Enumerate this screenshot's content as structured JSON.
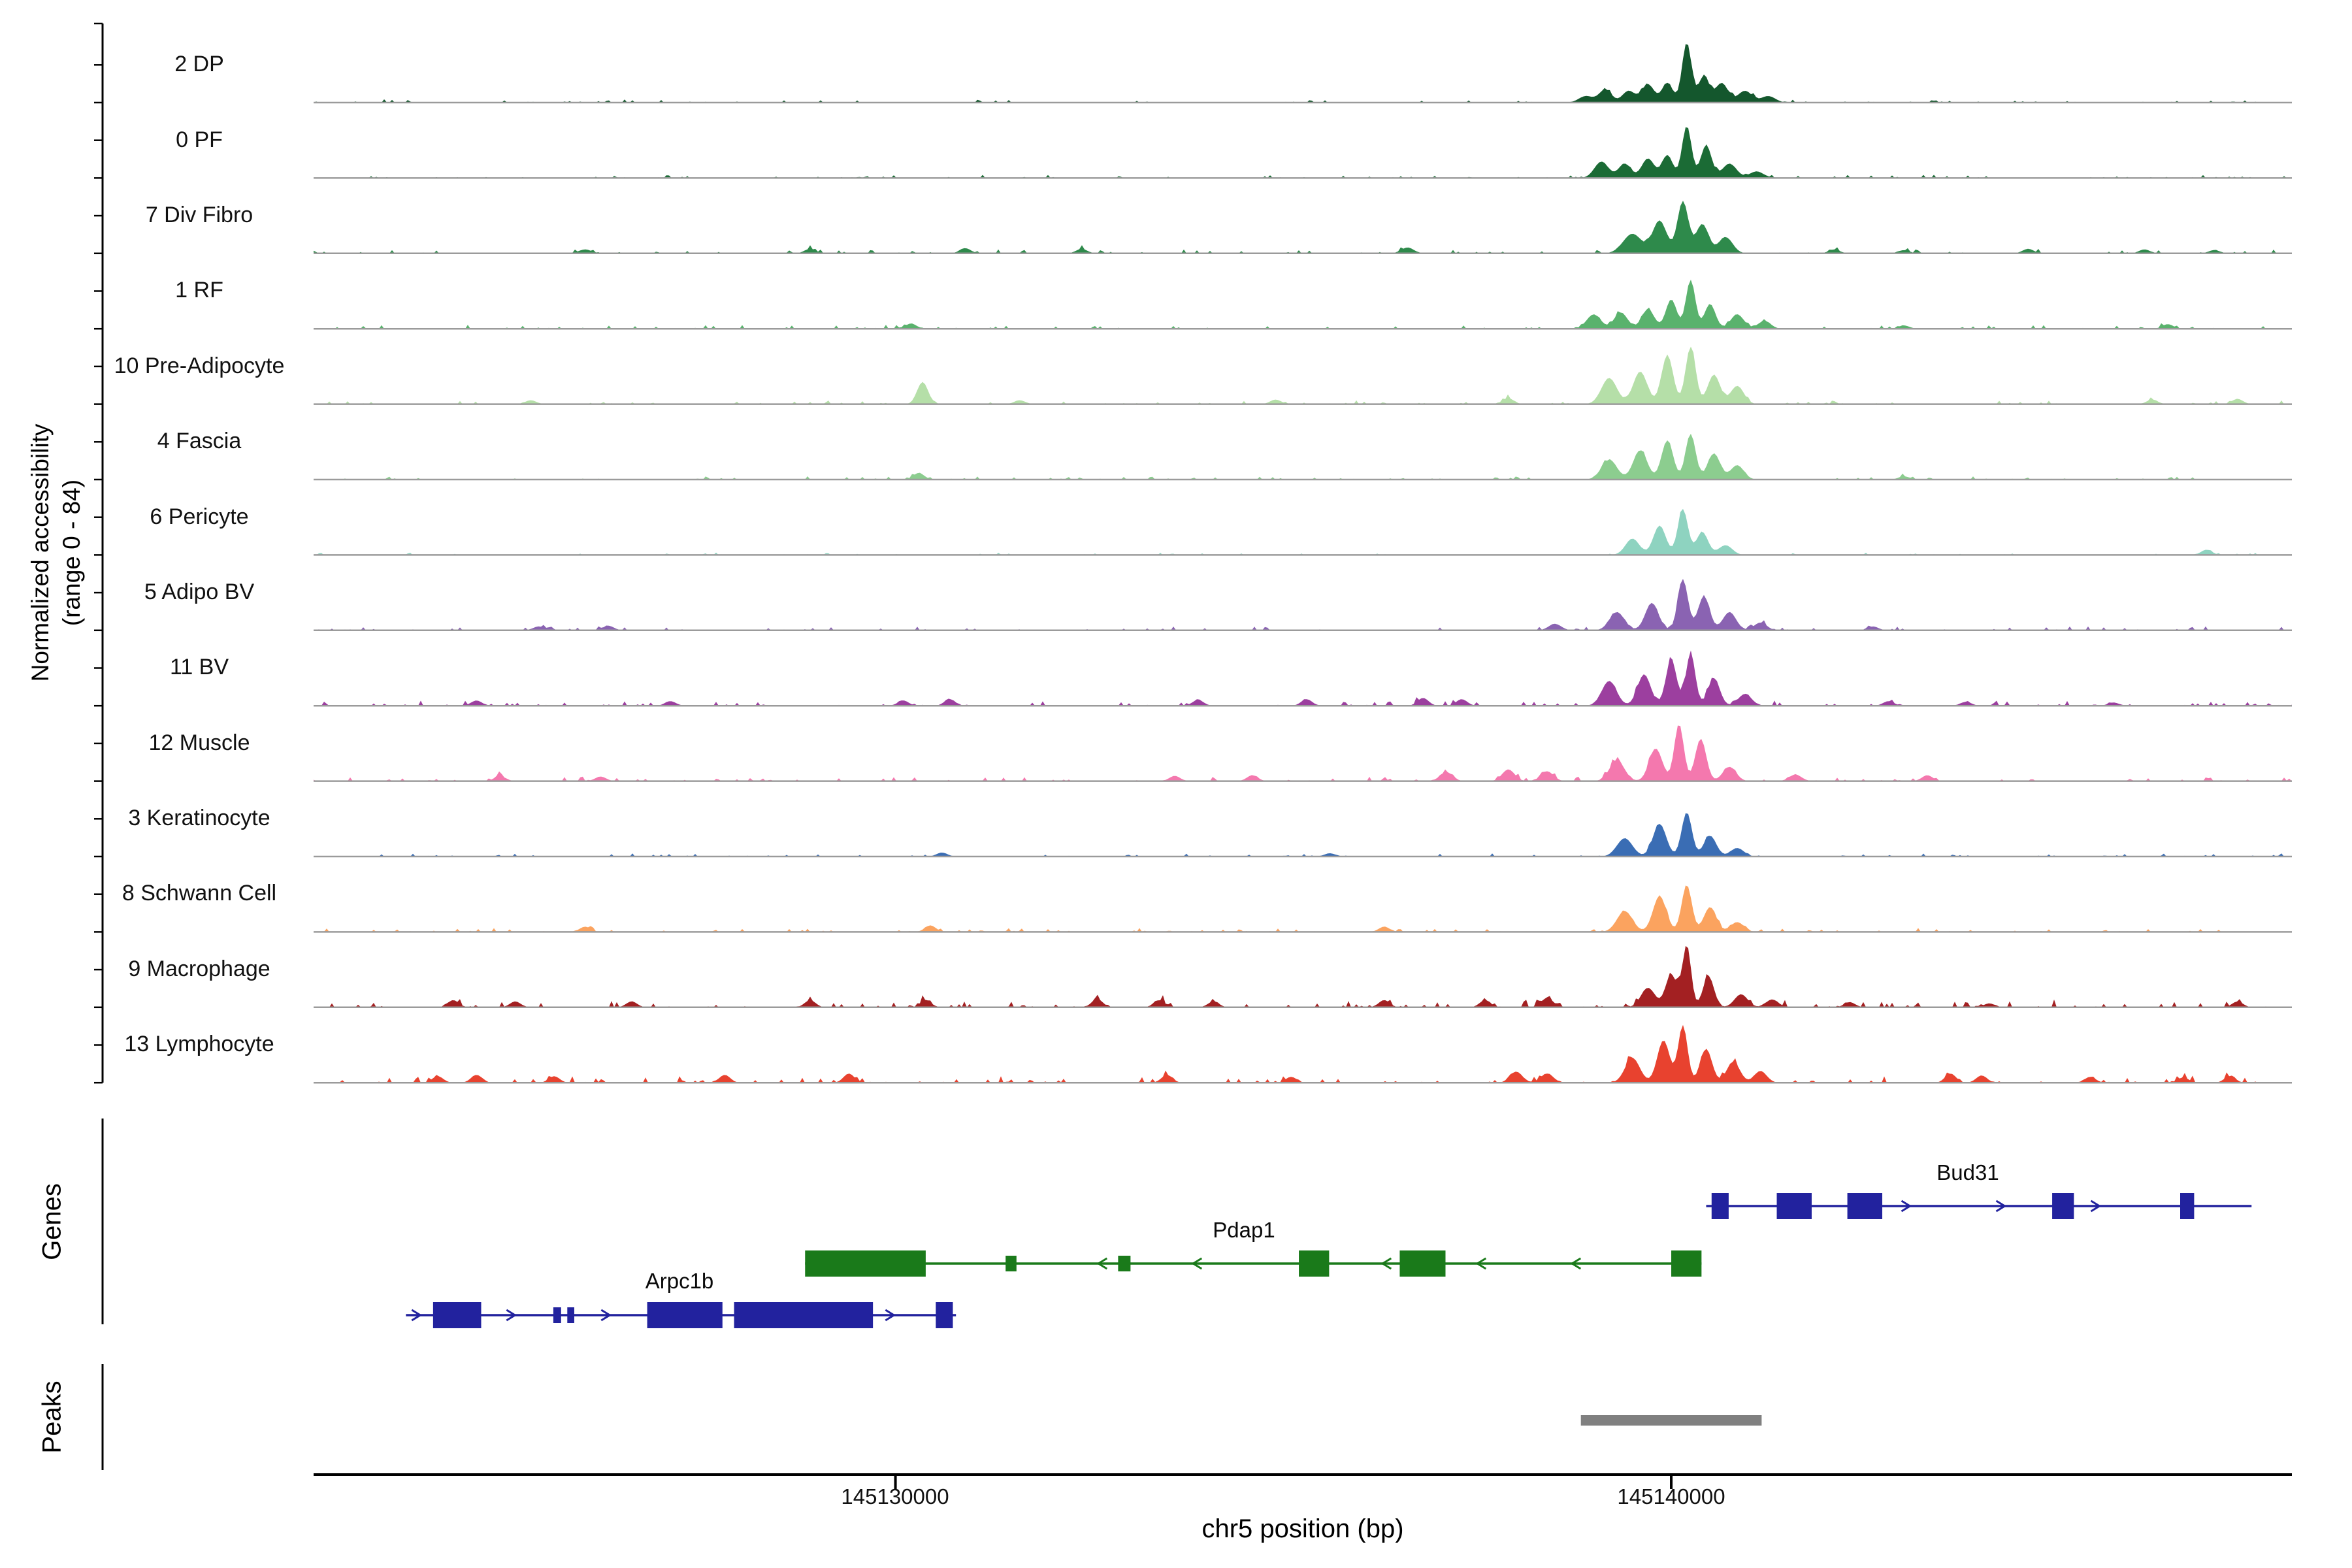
{
  "figure": {
    "y_axis_label_line1": "Normalized accessibility",
    "y_axis_label_line2": "(range 0 - 84)",
    "genes_section_label": "Genes",
    "peaks_section_label": "Peaks",
    "x_axis_title": "chr5 position (bp)"
  },
  "chart_data": {
    "type": "area",
    "title": "",
    "xlabel": "chr5 position (bp)",
    "ylabel": "Normalized accessibility (range 0 - 84)",
    "region": {
      "chrom": "chr5",
      "start": 145122500,
      "end": 145148000
    },
    "x_ticks": [
      {
        "pos": 145130000,
        "label": "145130000"
      },
      {
        "pos": 145140000,
        "label": "145140000"
      }
    ],
    "y_range_per_track": [
      0,
      84
    ],
    "baseline_color": "#9b9b9b",
    "tracks": [
      {
        "label": "2 DP",
        "color": "#14572d",
        "noise": 0.05,
        "bumps": [
          [
            145138900,
            0.1,
            90
          ],
          [
            145139150,
            0.2,
            80
          ],
          [
            145139450,
            0.18,
            80
          ],
          [
            145139700,
            0.28,
            80
          ],
          [
            145139950,
            0.3,
            70
          ],
          [
            145140200,
            0.92,
            60
          ],
          [
            145140420,
            0.4,
            70
          ],
          [
            145140650,
            0.3,
            80
          ],
          [
            145140950,
            0.18,
            90
          ],
          [
            145141250,
            0.1,
            90
          ]
        ]
      },
      {
        "label": "0 PF",
        "color": "#1b6b35",
        "noise": 0.05,
        "bumps": [
          [
            145139100,
            0.25,
            90
          ],
          [
            145139400,
            0.22,
            80
          ],
          [
            145139700,
            0.3,
            80
          ],
          [
            145139950,
            0.35,
            70
          ],
          [
            145140200,
            0.8,
            60
          ],
          [
            145140450,
            0.5,
            70
          ],
          [
            145140750,
            0.22,
            90
          ],
          [
            145141100,
            0.1,
            90
          ]
        ]
      },
      {
        "label": "7 Div Fibro",
        "color": "#2e8a4b",
        "noise": 0.06,
        "bumps": [
          [
            145126000,
            0.06,
            80
          ],
          [
            145128900,
            0.07,
            70
          ],
          [
            145130900,
            0.08,
            70
          ],
          [
            145132400,
            0.07,
            70
          ],
          [
            145136600,
            0.09,
            80
          ],
          [
            145139500,
            0.3,
            120
          ],
          [
            145139850,
            0.5,
            90
          ],
          [
            145140150,
            0.8,
            70
          ],
          [
            145140400,
            0.45,
            80
          ],
          [
            145140700,
            0.25,
            90
          ],
          [
            145142100,
            0.06,
            70
          ],
          [
            145143000,
            0.05,
            70
          ],
          [
            145144600,
            0.07,
            70
          ],
          [
            145146100,
            0.06,
            70
          ],
          [
            145147000,
            0.05,
            70
          ]
        ]
      },
      {
        "label": "1 RF",
        "color": "#5ab26d",
        "noise": 0.06,
        "bumps": [
          [
            145130200,
            0.08,
            70
          ],
          [
            145139000,
            0.22,
            90
          ],
          [
            145139350,
            0.25,
            85
          ],
          [
            145139700,
            0.3,
            80
          ],
          [
            145140000,
            0.45,
            70
          ],
          [
            145140250,
            0.75,
            60
          ],
          [
            145140500,
            0.38,
            70
          ],
          [
            145140850,
            0.22,
            85
          ],
          [
            145141200,
            0.12,
            80
          ],
          [
            145143000,
            0.05,
            70
          ],
          [
            145146400,
            0.07,
            70
          ]
        ]
      },
      {
        "label": "10 Pre-Adipocyte",
        "color": "#b5dfa8",
        "noise": 0.06,
        "bumps": [
          [
            145125300,
            0.06,
            70
          ],
          [
            145130350,
            0.34,
            70
          ],
          [
            145131600,
            0.06,
            70
          ],
          [
            145134900,
            0.07,
            70
          ],
          [
            145137900,
            0.09,
            70
          ],
          [
            145139200,
            0.4,
            100
          ],
          [
            145139600,
            0.5,
            90
          ],
          [
            145139950,
            0.75,
            75
          ],
          [
            145140250,
            0.88,
            65
          ],
          [
            145140550,
            0.45,
            80
          ],
          [
            145140850,
            0.28,
            85
          ],
          [
            145146200,
            0.07,
            70
          ],
          [
            145147300,
            0.08,
            70
          ]
        ]
      },
      {
        "label": "4 Fascia",
        "color": "#8ccd8f",
        "noise": 0.05,
        "bumps": [
          [
            145130300,
            0.1,
            70
          ],
          [
            145139200,
            0.3,
            100
          ],
          [
            145139600,
            0.45,
            90
          ],
          [
            145139950,
            0.6,
            75
          ],
          [
            145140250,
            0.7,
            65
          ],
          [
            145140550,
            0.4,
            80
          ],
          [
            145140850,
            0.22,
            85
          ],
          [
            145143000,
            0.05,
            70
          ]
        ]
      },
      {
        "label": "6 Pericyte",
        "color": "#8ed3c0",
        "noise": 0.04,
        "bumps": [
          [
            145139500,
            0.25,
            90
          ],
          [
            145139850,
            0.45,
            80
          ],
          [
            145140150,
            0.7,
            65
          ],
          [
            145140400,
            0.35,
            75
          ],
          [
            145140700,
            0.15,
            85
          ],
          [
            145146900,
            0.08,
            70
          ]
        ]
      },
      {
        "label": "5 Adipo BV",
        "color": "#8a63b2",
        "noise": 0.06,
        "bumps": [
          [
            145125400,
            0.06,
            70
          ],
          [
            145126300,
            0.07,
            70
          ],
          [
            145138500,
            0.1,
            80
          ],
          [
            145139300,
            0.28,
            95
          ],
          [
            145139750,
            0.42,
            85
          ],
          [
            145140150,
            0.78,
            65
          ],
          [
            145140420,
            0.52,
            75
          ],
          [
            145140750,
            0.28,
            85
          ],
          [
            145141150,
            0.12,
            80
          ],
          [
            145142600,
            0.06,
            70
          ]
        ]
      },
      {
        "label": "11 BV",
        "color": "#9c3f9f",
        "noise": 0.08,
        "bumps": [
          [
            145124600,
            0.08,
            70
          ],
          [
            145127100,
            0.07,
            70
          ],
          [
            145130100,
            0.08,
            70
          ],
          [
            145130700,
            0.1,
            70
          ],
          [
            145133900,
            0.09,
            70
          ],
          [
            145135300,
            0.1,
            70
          ],
          [
            145136800,
            0.12,
            70
          ],
          [
            145137300,
            0.1,
            70
          ],
          [
            145139200,
            0.38,
            95
          ],
          [
            145139650,
            0.48,
            85
          ],
          [
            145140000,
            0.7,
            70
          ],
          [
            145140250,
            0.8,
            60
          ],
          [
            145140550,
            0.42,
            75
          ],
          [
            145140950,
            0.18,
            85
          ],
          [
            145142800,
            0.07,
            70
          ],
          [
            145143800,
            0.06,
            70
          ],
          [
            145145700,
            0.05,
            70
          ]
        ]
      },
      {
        "label": "12 Muscle",
        "color": "#f478ae",
        "noise": 0.07,
        "bumps": [
          [
            145124900,
            0.08,
            70
          ],
          [
            145126200,
            0.07,
            70
          ],
          [
            145133600,
            0.08,
            70
          ],
          [
            145134600,
            0.09,
            70
          ],
          [
            145137100,
            0.14,
            80
          ],
          [
            145137900,
            0.18,
            80
          ],
          [
            145138400,
            0.15,
            80
          ],
          [
            145139300,
            0.32,
            95
          ],
          [
            145139800,
            0.5,
            85
          ],
          [
            145140100,
            0.88,
            60
          ],
          [
            145140380,
            0.65,
            70
          ],
          [
            145140750,
            0.22,
            85
          ],
          [
            145141600,
            0.1,
            80
          ],
          [
            145143300,
            0.09,
            70
          ]
        ]
      },
      {
        "label": "3 Keratinocyte",
        "color": "#3a6db4",
        "noise": 0.05,
        "bumps": [
          [
            145130600,
            0.06,
            70
          ],
          [
            145135600,
            0.05,
            70
          ],
          [
            145139400,
            0.28,
            100
          ],
          [
            145139850,
            0.5,
            85
          ],
          [
            145140200,
            0.68,
            65
          ],
          [
            145140500,
            0.32,
            80
          ],
          [
            145140850,
            0.13,
            85
          ]
        ]
      },
      {
        "label": "8 Schwann Cell",
        "color": "#fba35f",
        "noise": 0.06,
        "bumps": [
          [
            145126000,
            0.08,
            70
          ],
          [
            145130450,
            0.1,
            70
          ],
          [
            145136300,
            0.08,
            70
          ],
          [
            145139400,
            0.32,
            100
          ],
          [
            145139850,
            0.55,
            85
          ],
          [
            145140200,
            0.72,
            65
          ],
          [
            145140500,
            0.38,
            80
          ],
          [
            145140850,
            0.15,
            85
          ]
        ]
      },
      {
        "label": "9 Macrophage",
        "color": "#a32022",
        "noise": 0.12,
        "bumps": [
          [
            145124300,
            0.11,
            70
          ],
          [
            145125100,
            0.09,
            70
          ],
          [
            145126600,
            0.09,
            70
          ],
          [
            145128900,
            0.11,
            70
          ],
          [
            145130400,
            0.09,
            70
          ],
          [
            145132600,
            0.13,
            70
          ],
          [
            145133400,
            0.11,
            70
          ],
          [
            145134100,
            0.09,
            70
          ],
          [
            145136300,
            0.11,
            70
          ],
          [
            145137600,
            0.11,
            70
          ],
          [
            145138400,
            0.14,
            80
          ],
          [
            145139700,
            0.3,
            90
          ],
          [
            145140000,
            0.5,
            75
          ],
          [
            145140200,
            0.95,
            55
          ],
          [
            145140480,
            0.48,
            70
          ],
          [
            145140900,
            0.2,
            85
          ],
          [
            145141300,
            0.12,
            80
          ],
          [
            145142300,
            0.08,
            70
          ],
          [
            145144100,
            0.06,
            70
          ],
          [
            145147300,
            0.09,
            70
          ]
        ]
      },
      {
        "label": "13 Lymphocyte",
        "color": "#e8422f",
        "noise": 0.1,
        "bumps": [
          [
            145124100,
            0.1,
            70
          ],
          [
            145124600,
            0.12,
            70
          ],
          [
            145125600,
            0.1,
            70
          ],
          [
            145127800,
            0.12,
            70
          ],
          [
            145129400,
            0.14,
            70
          ],
          [
            145133500,
            0.12,
            70
          ],
          [
            145135100,
            0.09,
            70
          ],
          [
            145138000,
            0.17,
            80
          ],
          [
            145138400,
            0.14,
            80
          ],
          [
            145139500,
            0.38,
            95
          ],
          [
            145139900,
            0.65,
            80
          ],
          [
            145140150,
            0.88,
            60
          ],
          [
            145140450,
            0.52,
            75
          ],
          [
            145140800,
            0.32,
            85
          ],
          [
            145141150,
            0.18,
            80
          ],
          [
            145143600,
            0.14,
            70
          ],
          [
            145144000,
            0.11,
            70
          ],
          [
            145145400,
            0.09,
            70
          ],
          [
            145146600,
            0.08,
            70
          ],
          [
            145147200,
            0.1,
            70
          ]
        ]
      }
    ],
    "genes": [
      {
        "name": "Bud31",
        "color": "#22229e",
        "strand": "+",
        "start": 145140450,
        "end": 145147480,
        "exons": [
          [
            145140520,
            145140740,
            1
          ],
          [
            145141360,
            145141810,
            1
          ],
          [
            145142270,
            145142720,
            1
          ],
          [
            145144910,
            145145190,
            1
          ],
          [
            145146560,
            145146740,
            1
          ]
        ]
      },
      {
        "name": "Pdap1",
        "color": "#1a7a1a",
        "strand": "-",
        "start": 145128835,
        "end": 145140390,
        "exons": [
          [
            145128835,
            145130390,
            1
          ],
          [
            145131420,
            145131560,
            0
          ],
          [
            145132870,
            145133030,
            0
          ],
          [
            145135200,
            145135590,
            1
          ],
          [
            145136500,
            145137090,
            1
          ],
          [
            145140000,
            145140390,
            1
          ]
        ]
      },
      {
        "name": "Arpc1b",
        "color": "#22229e",
        "strand": "+",
        "start": 145123690,
        "end": 145130780,
        "exons": [
          [
            145124040,
            145124660,
            1
          ],
          [
            145125590,
            145125690,
            0
          ],
          [
            145125770,
            145125860,
            0
          ],
          [
            145126800,
            145127770,
            1
          ],
          [
            145127920,
            145129710,
            1
          ],
          [
            145130520,
            145130740,
            1
          ]
        ]
      }
    ],
    "peaks": [
      {
        "start": 145138835,
        "end": 145141165,
        "color": "#808080"
      }
    ]
  }
}
